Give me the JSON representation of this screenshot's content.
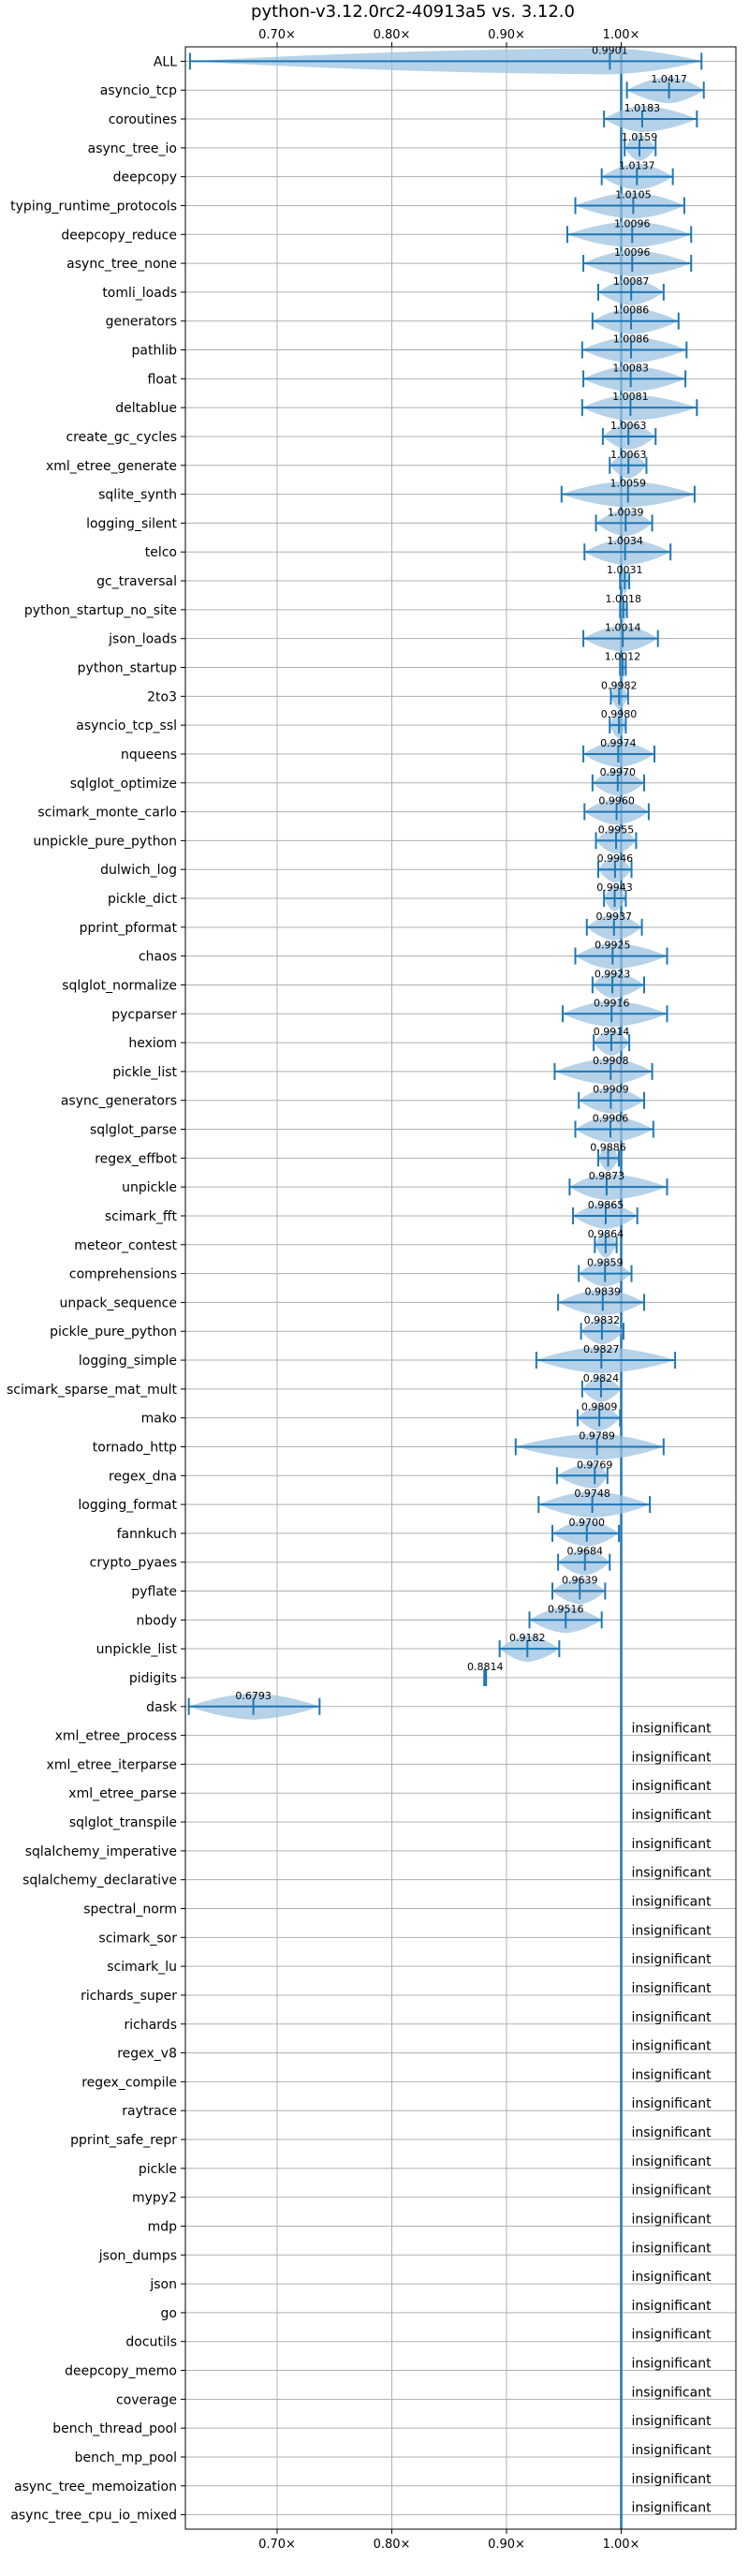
{
  "chart_data": {
    "type": "violin",
    "title": "python-v3.12.0rc2-40913a5 vs. 3.12.0",
    "x_ticks": [
      0.7,
      0.8,
      0.9,
      1.0
    ],
    "x_tick_labels": [
      "0.70×",
      "0.80×",
      "0.90×",
      "1.00×"
    ],
    "xlim": [
      0.62,
      1.1
    ],
    "reference_line": 1.0,
    "grid": true,
    "insignificant_label": "insignificant",
    "benchmarks": [
      {
        "name": "ALL",
        "value": 0.9901,
        "label": "0.9901",
        "min": 0.624,
        "max": 1.07
      },
      {
        "name": "asyncio_tcp",
        "value": 1.0417,
        "label": "1.0417",
        "min": 1.005,
        "max": 1.072
      },
      {
        "name": "coroutines",
        "value": 1.0183,
        "label": "1.0183",
        "min": 0.985,
        "max": 1.066
      },
      {
        "name": "async_tree_io",
        "value": 1.0159,
        "label": "1.0159",
        "min": 1.003,
        "max": 1.03
      },
      {
        "name": "deepcopy",
        "value": 1.0137,
        "label": "1.0137",
        "min": 0.983,
        "max": 1.045
      },
      {
        "name": "typing_runtime_protocols",
        "value": 1.0105,
        "label": "1.0105",
        "min": 0.96,
        "max": 1.055
      },
      {
        "name": "deepcopy_reduce",
        "value": 1.0096,
        "label": "1.0096",
        "min": 0.953,
        "max": 1.061
      },
      {
        "name": "async_tree_none",
        "value": 1.0096,
        "label": "1.0096",
        "min": 0.967,
        "max": 1.061
      },
      {
        "name": "tomli_loads",
        "value": 1.0087,
        "label": "1.0087",
        "min": 0.98,
        "max": 1.037
      },
      {
        "name": "generators",
        "value": 1.0086,
        "label": "1.0086",
        "min": 0.975,
        "max": 1.05
      },
      {
        "name": "pathlib",
        "value": 1.0086,
        "label": "1.0086",
        "min": 0.966,
        "max": 1.057
      },
      {
        "name": "float",
        "value": 1.0083,
        "label": "1.0083",
        "min": 0.967,
        "max": 1.056
      },
      {
        "name": "deltablue",
        "value": 1.0081,
        "label": "1.0081",
        "min": 0.966,
        "max": 1.066
      },
      {
        "name": "create_gc_cycles",
        "value": 1.0063,
        "label": "1.0063",
        "min": 0.984,
        "max": 1.03
      },
      {
        "name": "xml_etree_generate",
        "value": 1.0063,
        "label": "1.0063",
        "min": 0.99,
        "max": 1.022
      },
      {
        "name": "sqlite_synth",
        "value": 1.0059,
        "label": "1.0059",
        "min": 0.948,
        "max": 1.064
      },
      {
        "name": "logging_silent",
        "value": 1.0039,
        "label": "1.0039",
        "min": 0.978,
        "max": 1.027
      },
      {
        "name": "telco",
        "value": 1.0034,
        "label": "1.0034",
        "min": 0.968,
        "max": 1.043
      },
      {
        "name": "gc_traversal",
        "value": 1.0031,
        "label": "1.0031",
        "min": 0.999,
        "max": 1.007
      },
      {
        "name": "python_startup_no_site",
        "value": 1.0018,
        "label": "1.0018",
        "min": 0.999,
        "max": 1.005
      },
      {
        "name": "json_loads",
        "value": 1.0014,
        "label": "1.0014",
        "min": 0.967,
        "max": 1.032
      },
      {
        "name": "python_startup",
        "value": 1.0012,
        "label": "1.0012",
        "min": 0.999,
        "max": 1.004
      },
      {
        "name": "2to3",
        "value": 0.9982,
        "label": "0.9982",
        "min": 0.991,
        "max": 1.006
      },
      {
        "name": "asyncio_tcp_ssl",
        "value": 0.998,
        "label": "0.9980",
        "min": 0.99,
        "max": 1.004
      },
      {
        "name": "nqueens",
        "value": 0.9974,
        "label": "0.9974",
        "min": 0.967,
        "max": 1.029
      },
      {
        "name": "sqlglot_optimize",
        "value": 0.997,
        "label": "0.9970",
        "min": 0.975,
        "max": 1.02
      },
      {
        "name": "scimark_monte_carlo",
        "value": 0.996,
        "label": "0.9960",
        "min": 0.968,
        "max": 1.024
      },
      {
        "name": "unpickle_pure_python",
        "value": 0.9955,
        "label": "0.9955",
        "min": 0.978,
        "max": 1.013
      },
      {
        "name": "dulwich_log",
        "value": 0.9946,
        "label": "0.9946",
        "min": 0.98,
        "max": 1.009
      },
      {
        "name": "pickle_dict",
        "value": 0.9943,
        "label": "0.9943",
        "min": 0.985,
        "max": 1.004
      },
      {
        "name": "pprint_pformat",
        "value": 0.9937,
        "label": "0.9937",
        "min": 0.97,
        "max": 1.018
      },
      {
        "name": "chaos",
        "value": 0.9925,
        "label": "0.9925",
        "min": 0.96,
        "max": 1.04
      },
      {
        "name": "sqlglot_normalize",
        "value": 0.9923,
        "label": "0.9923",
        "min": 0.975,
        "max": 1.02
      },
      {
        "name": "pycparser",
        "value": 0.9916,
        "label": "0.9916",
        "min": 0.949,
        "max": 1.04
      },
      {
        "name": "hexiom",
        "value": 0.9914,
        "label": "0.9914",
        "min": 0.976,
        "max": 1.007
      },
      {
        "name": "pickle_list",
        "value": 0.9908,
        "label": "0.9908",
        "min": 0.942,
        "max": 1.027
      },
      {
        "name": "async_generators",
        "value": 0.9909,
        "label": "0.9909",
        "min": 0.963,
        "max": 1.02
      },
      {
        "name": "sqlglot_parse",
        "value": 0.9906,
        "label": "0.9906",
        "min": 0.96,
        "max": 1.028
      },
      {
        "name": "regex_effbot",
        "value": 0.9886,
        "label": "0.9886",
        "min": 0.98,
        "max": 0.998
      },
      {
        "name": "unpickle",
        "value": 0.9873,
        "label": "0.9873",
        "min": 0.955,
        "max": 1.04
      },
      {
        "name": "scimark_fft",
        "value": 0.9865,
        "label": "0.9865",
        "min": 0.958,
        "max": 1.014
      },
      {
        "name": "meteor_contest",
        "value": 0.9864,
        "label": "0.9864",
        "min": 0.977,
        "max": 0.996
      },
      {
        "name": "comprehensions",
        "value": 0.9859,
        "label": "0.9859",
        "min": 0.963,
        "max": 1.009
      },
      {
        "name": "unpack_sequence",
        "value": 0.9839,
        "label": "0.9839",
        "min": 0.945,
        "max": 1.02
      },
      {
        "name": "pickle_pure_python",
        "value": 0.9832,
        "label": "0.9832",
        "min": 0.965,
        "max": 1.002
      },
      {
        "name": "logging_simple",
        "value": 0.9827,
        "label": "0.9827",
        "min": 0.926,
        "max": 1.047
      },
      {
        "name": "scimark_sparse_mat_mult",
        "value": 0.9824,
        "label": "0.9824",
        "min": 0.966,
        "max": 1.0
      },
      {
        "name": "mako",
        "value": 0.9809,
        "label": "0.9809",
        "min": 0.962,
        "max": 0.999
      },
      {
        "name": "tornado_http",
        "value": 0.9789,
        "label": "0.9789",
        "min": 0.908,
        "max": 1.037
      },
      {
        "name": "regex_dna",
        "value": 0.9769,
        "label": "0.9769",
        "min": 0.944,
        "max": 0.988
      },
      {
        "name": "logging_format",
        "value": 0.9748,
        "label": "0.9748",
        "min": 0.928,
        "max": 1.025
      },
      {
        "name": "fannkuch",
        "value": 0.97,
        "label": "0.9700",
        "min": 0.94,
        "max": 0.998
      },
      {
        "name": "crypto_pyaes",
        "value": 0.9684,
        "label": "0.9684",
        "min": 0.945,
        "max": 0.99
      },
      {
        "name": "pyflate",
        "value": 0.9639,
        "label": "0.9639",
        "min": 0.94,
        "max": 0.986
      },
      {
        "name": "nbody",
        "value": 0.9516,
        "label": "0.9516",
        "min": 0.92,
        "max": 0.983
      },
      {
        "name": "unpickle_list",
        "value": 0.9182,
        "label": "0.9182",
        "min": 0.894,
        "max": 0.946
      },
      {
        "name": "pidigits",
        "value": 0.8814,
        "label": "0.8814",
        "min": 0.8806,
        "max": 0.8822
      },
      {
        "name": "dask",
        "value": 0.6793,
        "label": "0.6793",
        "min": 0.623,
        "max": 0.737
      },
      {
        "name": "xml_etree_process",
        "significant": false
      },
      {
        "name": "xml_etree_iterparse",
        "significant": false
      },
      {
        "name": "xml_etree_parse",
        "significant": false
      },
      {
        "name": "sqlglot_transpile",
        "significant": false
      },
      {
        "name": "sqlalchemy_imperative",
        "significant": false
      },
      {
        "name": "sqlalchemy_declarative",
        "significant": false
      },
      {
        "name": "spectral_norm",
        "significant": false
      },
      {
        "name": "scimark_sor",
        "significant": false
      },
      {
        "name": "scimark_lu",
        "significant": false
      },
      {
        "name": "richards_super",
        "significant": false
      },
      {
        "name": "richards",
        "significant": false
      },
      {
        "name": "regex_v8",
        "significant": false
      },
      {
        "name": "regex_compile",
        "significant": false
      },
      {
        "name": "raytrace",
        "significant": false
      },
      {
        "name": "pprint_safe_repr",
        "significant": false
      },
      {
        "name": "pickle",
        "significant": false
      },
      {
        "name": "mypy2",
        "significant": false
      },
      {
        "name": "mdp",
        "significant": false
      },
      {
        "name": "json_dumps",
        "significant": false
      },
      {
        "name": "json",
        "significant": false
      },
      {
        "name": "go",
        "significant": false
      },
      {
        "name": "docutils",
        "significant": false
      },
      {
        "name": "deepcopy_memo",
        "significant": false
      },
      {
        "name": "coverage",
        "significant": false
      },
      {
        "name": "bench_thread_pool",
        "significant": false
      },
      {
        "name": "bench_mp_pool",
        "significant": false
      },
      {
        "name": "async_tree_memoization",
        "significant": false
      },
      {
        "name": "async_tree_cpu_io_mixed",
        "significant": false
      }
    ]
  },
  "colors": {
    "line": "#1f77b4",
    "fill": "#9ec3e0",
    "grid": "#b0b0b0",
    "axis": "#000000"
  }
}
